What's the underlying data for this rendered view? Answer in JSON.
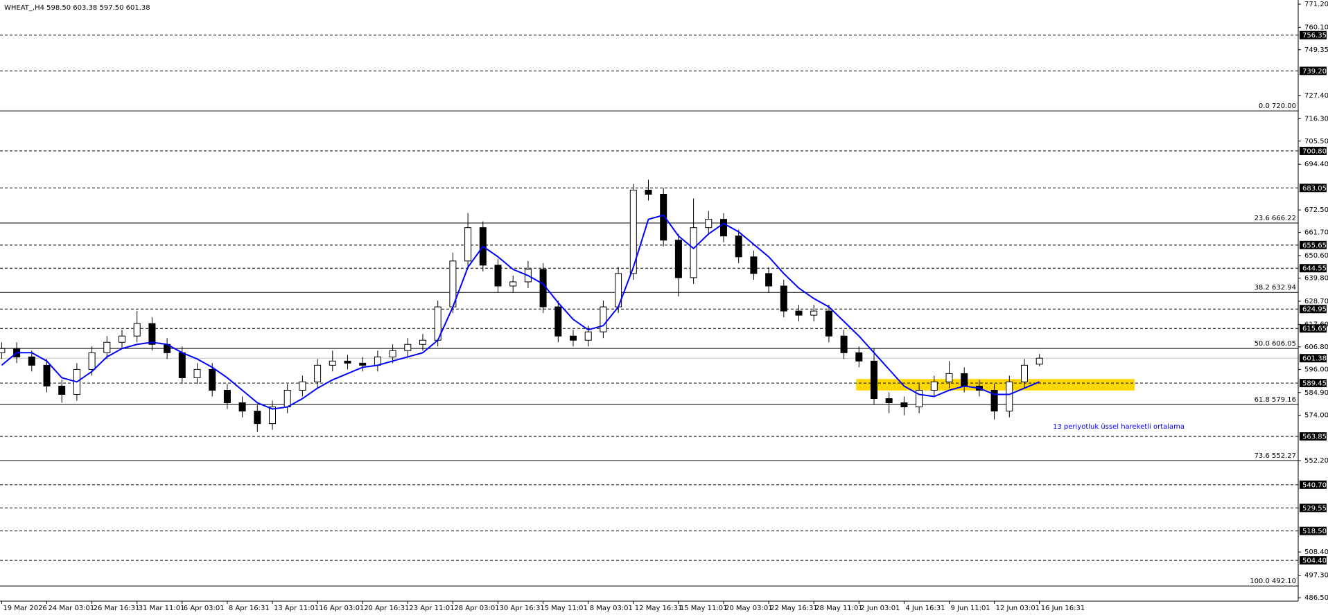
{
  "chart_data": {
    "type": "candlestick",
    "title": "WHEAT_,H4  598.50 603.38 597.50 601.38",
    "categories": [
      "19 Mar 2026",
      null,
      null,
      "24 Mar 03:01",
      null,
      null,
      "26 Mar 16:31",
      null,
      null,
      "31 Mar 11:01",
      null,
      null,
      "6 Apr 03:01",
      null,
      null,
      "8 Apr 16:31",
      null,
      null,
      "13 Apr 11:01",
      null,
      null,
      "16 Apr 03:01",
      null,
      null,
      "20 Apr 16:31",
      null,
      null,
      "23 Apr 11:01",
      null,
      null,
      "28 Apr 03:01",
      null,
      null,
      "30 Apr 16:31",
      null,
      null,
      "5 May 11:01",
      null,
      null,
      "8 May 03:01",
      null,
      null,
      "12 May 16:31",
      null,
      null,
      "15 May 11:01",
      null,
      null,
      "20 May 03:01",
      null,
      null,
      "22 May 16:31",
      null,
      null,
      "28 May 11:01",
      null,
      null,
      "2 Jun 03:01",
      null,
      null,
      "4 Jun 16:31",
      null,
      null,
      "9 Jun 11:01",
      null,
      null,
      "12 Jun 03:01",
      null,
      null,
      "16 Jun 16:31"
    ],
    "open": [
      604,
      606,
      602,
      598,
      588,
      584,
      596,
      604,
      609,
      612,
      618,
      608,
      604,
      592,
      596,
      586,
      580,
      576,
      570,
      578,
      586,
      590,
      598,
      600,
      599,
      598,
      602,
      605,
      608,
      610,
      626,
      648,
      664,
      646,
      636,
      638,
      644,
      626,
      612,
      610,
      614,
      626,
      642,
      682,
      680,
      658,
      640,
      664,
      668,
      660,
      650,
      642,
      636,
      624,
      622,
      624,
      612,
      604,
      600,
      582,
      580,
      578,
      586,
      590,
      594,
      588,
      586,
      576,
      590,
      598.5
    ],
    "high": [
      609,
      609,
      605,
      601,
      591,
      599,
      607,
      612,
      615,
      624,
      621,
      611,
      607,
      599,
      599,
      589,
      583,
      579,
      581,
      589,
      593,
      601,
      605,
      603,
      602,
      605,
      608,
      611,
      613,
      629,
      652,
      671,
      667,
      649,
      641,
      648,
      647,
      629,
      615,
      617,
      629,
      645,
      685,
      687,
      683,
      661,
      678,
      672,
      671,
      663,
      653,
      645,
      639,
      627,
      627,
      627,
      615,
      607,
      606,
      585,
      583,
      589,
      593,
      600,
      597,
      591,
      589,
      593,
      601,
      603.38
    ],
    "low": [
      601,
      599,
      595,
      585,
      580,
      581,
      593,
      601,
      606,
      609,
      605,
      601,
      589,
      589,
      583,
      577,
      573,
      566,
      567,
      575,
      583,
      587,
      595,
      596,
      595,
      595,
      599,
      602,
      605,
      607,
      623,
      645,
      643,
      633,
      633,
      635,
      623,
      609,
      607,
      607,
      611,
      623,
      639,
      677,
      655,
      631,
      637,
      661,
      657,
      647,
      639,
      633,
      621,
      619,
      619,
      609,
      601,
      597,
      579,
      575,
      574,
      575,
      583,
      587,
      585,
      583,
      572,
      573,
      587,
      597.5
    ],
    "close": [
      606,
      602,
      598,
      588,
      584,
      596,
      604,
      609,
      612,
      618,
      608,
      604,
      592,
      596,
      586,
      580,
      576,
      570,
      578,
      586,
      590,
      598,
      600,
      599,
      598,
      602,
      605,
      608,
      610,
      626,
      648,
      664,
      646,
      636,
      638,
      644,
      626,
      612,
      610,
      614,
      626,
      642,
      682,
      680,
      658,
      640,
      664,
      668,
      660,
      650,
      642,
      636,
      624,
      622,
      624,
      612,
      604,
      600,
      582,
      580,
      578,
      586,
      590,
      594,
      588,
      586,
      576,
      590,
      598,
      601.38
    ],
    "candle_color_up": "#ffffff",
    "candle_color_down": "#000000",
    "ema": {
      "name": "13 periyotluk üssel hareketli ortalama",
      "color": "#0000ff",
      "values": [
        598,
        604,
        604,
        600,
        592,
        590,
        595,
        602,
        606,
        608,
        609,
        608,
        604,
        601,
        597,
        592,
        586,
        580,
        577,
        578,
        582,
        587,
        591,
        594,
        597,
        598,
        600,
        602,
        604,
        610,
        626,
        645,
        655,
        650,
        644,
        641,
        637,
        628,
        620,
        615,
        617,
        626,
        645,
        668,
        670,
        660,
        654,
        661,
        666,
        662,
        656,
        650,
        642,
        635,
        630,
        626,
        619,
        612,
        604,
        596,
        588,
        584,
        583,
        586,
        588,
        587,
        584,
        584,
        587,
        590
      ]
    },
    "ylim": [
      486.5,
      771.2
    ],
    "yticks": [
      {
        "value": 771.2,
        "label": "771.20"
      },
      {
        "value": 760.1,
        "label": "760.10"
      },
      749.35,
      {
        "value": 727.4,
        "label": "727.40"
      },
      {
        "value": 716.3,
        "label": "716.30"
      },
      {
        "value": 705.5,
        "label": "705.50"
      },
      {
        "value": 694.4,
        "label": "694.40"
      },
      {
        "value": 672.5,
        "label": "672.50"
      },
      {
        "value": 661.7,
        "label": "661.70"
      },
      {
        "value": 650.6,
        "label": "650.60"
      },
      {
        "value": 639.8,
        "label": "639.80"
      },
      {
        "value": 628.7,
        "label": "628.70"
      },
      {
        "value": 617.6,
        "label": "617.60"
      },
      {
        "value": 606.8,
        "label": "606.80"
      },
      {
        "value": 596,
        "label": "596.00"
      },
      {
        "value": 584.9,
        "label": "584.90"
      },
      {
        "value": 574,
        "label": "574.00"
      },
      {
        "value": 552.2,
        "label": "552.20"
      },
      {
        "value": 508.4,
        "label": "508.40"
      },
      {
        "value": 497.3,
        "label": "497.30"
      },
      {
        "value": 486.5,
        "label": "486.50"
      }
    ],
    "levels": [
      756.35,
      {
        "value": 739.2,
        "label": "739.20"
      },
      {
        "value": 700.8,
        "label": "700.80"
      },
      683.05,
      655.65,
      644.55,
      624.95,
      615.65,
      589.45,
      563.85,
      {
        "value": 540.7,
        "label": "540.70"
      },
      529.55,
      {
        "value": 518.5,
        "label": "518.50"
      },
      {
        "value": 504.4,
        "label": "504.40"
      }
    ],
    "fib_levels": [
      {
        "value": 720,
        "label": "0.0 720.00"
      },
      {
        "value": 666.22,
        "label": "23.6 666.22"
      },
      {
        "value": 632.94,
        "label": "38.2 632.94"
      },
      {
        "value": 606.05,
        "label": "50.0 606.05"
      },
      {
        "value": 579.16,
        "label": "61.8 579.16"
      },
      {
        "value": 552.27,
        "label": "73.6 552.27"
      },
      {
        "value": 492.1,
        "label": "100.0 492.10"
      }
    ],
    "current_price": 601.38,
    "zone": {
      "range": [
        585.9,
        591.4
      ],
      "color": "#ffd700"
    }
  }
}
